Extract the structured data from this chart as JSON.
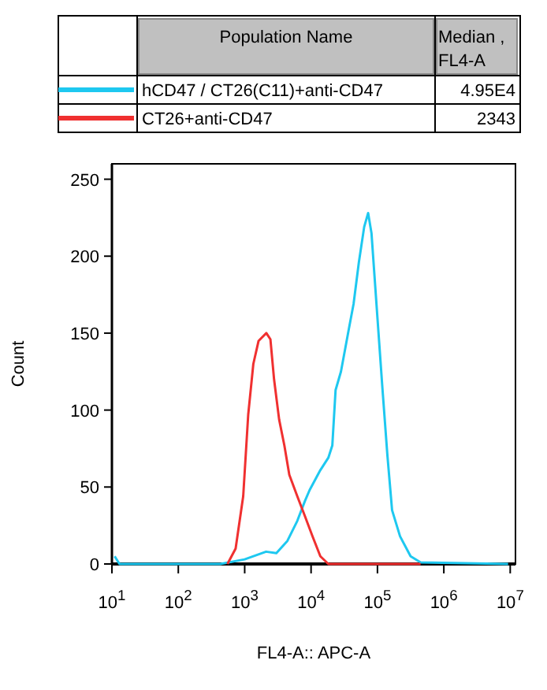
{
  "chart_data": {
    "type": "line",
    "xlabel": "FL4-A:: APC-A",
    "ylabel": "Count",
    "log": "x",
    "legend": "top",
    "legend_title": "Population Name",
    "xlim": [
      10,
      12000000
    ],
    "xticks": [
      {
        "value": 10,
        "label": "10$^{1}$"
      },
      {
        "value": 100,
        "label": "10$^{2}$"
      },
      {
        "value": 1000,
        "label": "10$^{3}$"
      },
      {
        "value": 10000,
        "label": "10$^{4}$"
      },
      {
        "value": 100000,
        "label": "10$^{5}$"
      },
      {
        "value": 1000000,
        "label": "10$^{6}$"
      },
      {
        "value": 10000000,
        "label": "10$^{7}$"
      }
    ],
    "ylim": [
      0,
      260
    ],
    "yticks": [
      0,
      50,
      100,
      150,
      200,
      250
    ],
    "grid": false,
    "marker": "none",
    "line_style": "solid",
    "annotations": [
      "Median , FL4-A",
      "4.95E4",
      "2343"
    ],
    "series": [
      {
        "name": "hCD47 / CT26(C11)+anti-CD47",
        "color": "#1ec8f0",
        "x": [
          11,
          13,
          430,
          1000,
          2100,
          3000,
          4400,
          6200,
          8100,
          9500,
          13800,
          18200,
          20900,
          23400,
          28200,
          37200,
          43700,
          52500,
          63100,
          72400,
          81300,
          97700,
          117500,
          141000,
          166000,
          219000,
          316000,
          447000,
          9300000
        ],
        "values": [
          5,
          0,
          0,
          3,
          8,
          7,
          15,
          28,
          41,
          48,
          61,
          69,
          77,
          113,
          125,
          153,
          169,
          196,
          219,
          228,
          215,
          166,
          117,
          71,
          35,
          18,
          5,
          1,
          0
        ]
      },
      {
        "name": "CT26+anti-CD47",
        "color": "#f03030",
        "x": [
          550,
          730,
          950,
          1130,
          1350,
          1620,
          2120,
          2440,
          2770,
          3300,
          3960,
          4700,
          6200,
          8100,
          10500,
          13800,
          18200,
          447000
        ],
        "values": [
          0,
          10,
          44,
          97,
          130,
          145,
          150,
          146,
          120,
          94,
          77,
          58,
          44,
          31,
          18,
          5,
          0,
          0
        ]
      }
    ]
  }
}
